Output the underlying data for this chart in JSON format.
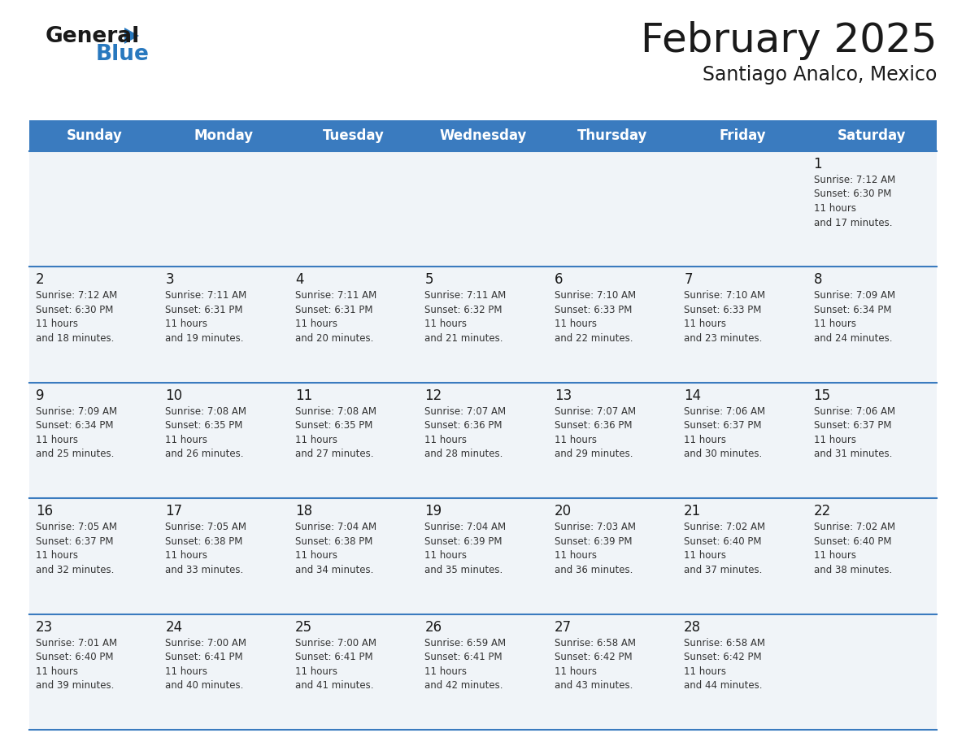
{
  "title": "February 2025",
  "subtitle": "Santiago Analco, Mexico",
  "header_bg": "#3a7bbf",
  "header_text_color": "#ffffff",
  "cell_bg": "#f0f4f8",
  "line_color": "#3a7bbf",
  "text_color": "#1a1a1a",
  "day_text_color": "#333333",
  "day_headers": [
    "Sunday",
    "Monday",
    "Tuesday",
    "Wednesday",
    "Thursday",
    "Friday",
    "Saturday"
  ],
  "days": [
    {
      "day": 1,
      "col": 6,
      "row": 0,
      "sunrise": "7:12 AM",
      "sunset": "6:30 PM",
      "daylight": "11 hours and 17 minutes."
    },
    {
      "day": 2,
      "col": 0,
      "row": 1,
      "sunrise": "7:12 AM",
      "sunset": "6:30 PM",
      "daylight": "11 hours and 18 minutes."
    },
    {
      "day": 3,
      "col": 1,
      "row": 1,
      "sunrise": "7:11 AM",
      "sunset": "6:31 PM",
      "daylight": "11 hours and 19 minutes."
    },
    {
      "day": 4,
      "col": 2,
      "row": 1,
      "sunrise": "7:11 AM",
      "sunset": "6:31 PM",
      "daylight": "11 hours and 20 minutes."
    },
    {
      "day": 5,
      "col": 3,
      "row": 1,
      "sunrise": "7:11 AM",
      "sunset": "6:32 PM",
      "daylight": "11 hours and 21 minutes."
    },
    {
      "day": 6,
      "col": 4,
      "row": 1,
      "sunrise": "7:10 AM",
      "sunset": "6:33 PM",
      "daylight": "11 hours and 22 minutes."
    },
    {
      "day": 7,
      "col": 5,
      "row": 1,
      "sunrise": "7:10 AM",
      "sunset": "6:33 PM",
      "daylight": "11 hours and 23 minutes."
    },
    {
      "day": 8,
      "col": 6,
      "row": 1,
      "sunrise": "7:09 AM",
      "sunset": "6:34 PM",
      "daylight": "11 hours and 24 minutes."
    },
    {
      "day": 9,
      "col": 0,
      "row": 2,
      "sunrise": "7:09 AM",
      "sunset": "6:34 PM",
      "daylight": "11 hours and 25 minutes."
    },
    {
      "day": 10,
      "col": 1,
      "row": 2,
      "sunrise": "7:08 AM",
      "sunset": "6:35 PM",
      "daylight": "11 hours and 26 minutes."
    },
    {
      "day": 11,
      "col": 2,
      "row": 2,
      "sunrise": "7:08 AM",
      "sunset": "6:35 PM",
      "daylight": "11 hours and 27 minutes."
    },
    {
      "day": 12,
      "col": 3,
      "row": 2,
      "sunrise": "7:07 AM",
      "sunset": "6:36 PM",
      "daylight": "11 hours and 28 minutes."
    },
    {
      "day": 13,
      "col": 4,
      "row": 2,
      "sunrise": "7:07 AM",
      "sunset": "6:36 PM",
      "daylight": "11 hours and 29 minutes."
    },
    {
      "day": 14,
      "col": 5,
      "row": 2,
      "sunrise": "7:06 AM",
      "sunset": "6:37 PM",
      "daylight": "11 hours and 30 minutes."
    },
    {
      "day": 15,
      "col": 6,
      "row": 2,
      "sunrise": "7:06 AM",
      "sunset": "6:37 PM",
      "daylight": "11 hours and 31 minutes."
    },
    {
      "day": 16,
      "col": 0,
      "row": 3,
      "sunrise": "7:05 AM",
      "sunset": "6:37 PM",
      "daylight": "11 hours and 32 minutes."
    },
    {
      "day": 17,
      "col": 1,
      "row": 3,
      "sunrise": "7:05 AM",
      "sunset": "6:38 PM",
      "daylight": "11 hours and 33 minutes."
    },
    {
      "day": 18,
      "col": 2,
      "row": 3,
      "sunrise": "7:04 AM",
      "sunset": "6:38 PM",
      "daylight": "11 hours and 34 minutes."
    },
    {
      "day": 19,
      "col": 3,
      "row": 3,
      "sunrise": "7:04 AM",
      "sunset": "6:39 PM",
      "daylight": "11 hours and 35 minutes."
    },
    {
      "day": 20,
      "col": 4,
      "row": 3,
      "sunrise": "7:03 AM",
      "sunset": "6:39 PM",
      "daylight": "11 hours and 36 minutes."
    },
    {
      "day": 21,
      "col": 5,
      "row": 3,
      "sunrise": "7:02 AM",
      "sunset": "6:40 PM",
      "daylight": "11 hours and 37 minutes."
    },
    {
      "day": 22,
      "col": 6,
      "row": 3,
      "sunrise": "7:02 AM",
      "sunset": "6:40 PM",
      "daylight": "11 hours and 38 minutes."
    },
    {
      "day": 23,
      "col": 0,
      "row": 4,
      "sunrise": "7:01 AM",
      "sunset": "6:40 PM",
      "daylight": "11 hours and 39 minutes."
    },
    {
      "day": 24,
      "col": 1,
      "row": 4,
      "sunrise": "7:00 AM",
      "sunset": "6:41 PM",
      "daylight": "11 hours and 40 minutes."
    },
    {
      "day": 25,
      "col": 2,
      "row": 4,
      "sunrise": "7:00 AM",
      "sunset": "6:41 PM",
      "daylight": "11 hours and 41 minutes."
    },
    {
      "day": 26,
      "col": 3,
      "row": 4,
      "sunrise": "6:59 AM",
      "sunset": "6:41 PM",
      "daylight": "11 hours and 42 minutes."
    },
    {
      "day": 27,
      "col": 4,
      "row": 4,
      "sunrise": "6:58 AM",
      "sunset": "6:42 PM",
      "daylight": "11 hours and 43 minutes."
    },
    {
      "day": 28,
      "col": 5,
      "row": 4,
      "sunrise": "6:58 AM",
      "sunset": "6:42 PM",
      "daylight": "11 hours and 44 minutes."
    }
  ],
  "logo_color_general": "#1a1a1a",
  "logo_color_blue": "#2878be",
  "logo_triangle_color": "#2878be"
}
